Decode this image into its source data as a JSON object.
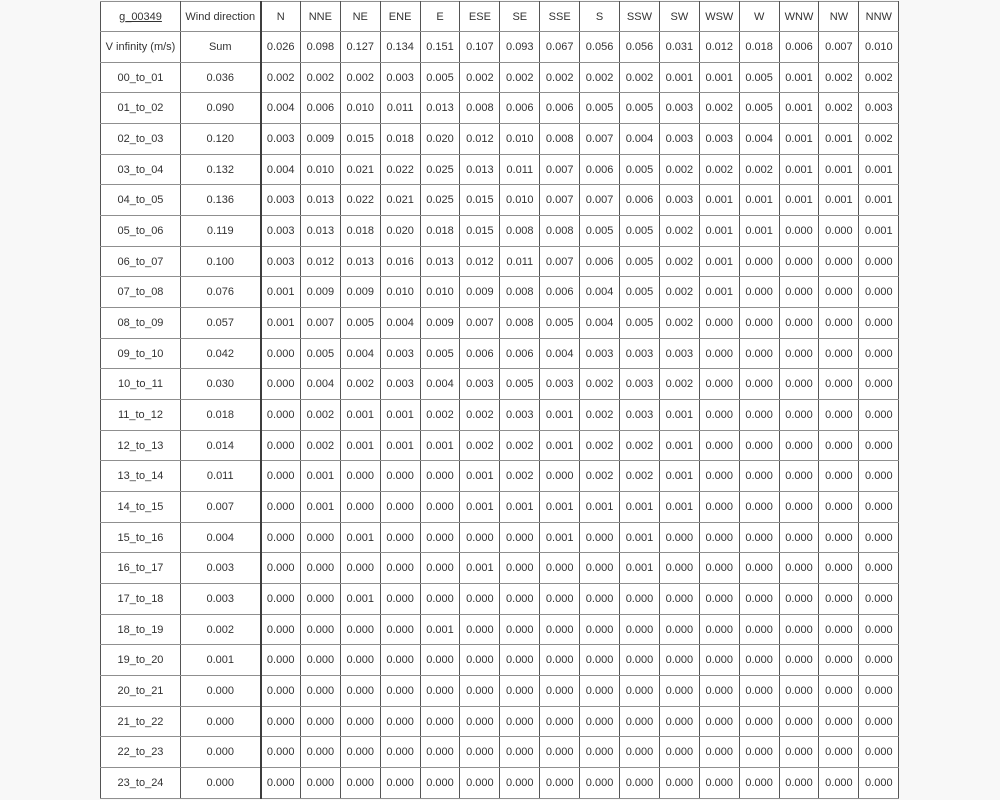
{
  "table": {
    "corner_label": "g_00349",
    "wind_direction_header": "Wind direction",
    "directions": [
      "N",
      "NNE",
      "NE",
      "ENE",
      "E",
      "ESE",
      "SE",
      "SSE",
      "S",
      "SSW",
      "SW",
      "WSW",
      "W",
      "WNW",
      "NW",
      "NNW"
    ],
    "sum_row": {
      "label": "V infinity (m/s)",
      "sublabel": "Sum",
      "values": [
        "0.026",
        "0.098",
        "0.127",
        "0.134",
        "0.151",
        "0.107",
        "0.093",
        "0.067",
        "0.056",
        "0.056",
        "0.031",
        "0.012",
        "0.018",
        "0.006",
        "0.007",
        "0.010"
      ]
    },
    "rows": [
      {
        "label": "00_to_01",
        "total": "0.036",
        "values": [
          "0.002",
          "0.002",
          "0.002",
          "0.003",
          "0.005",
          "0.002",
          "0.002",
          "0.002",
          "0.002",
          "0.002",
          "0.001",
          "0.001",
          "0.005",
          "0.001",
          "0.002",
          "0.002"
        ]
      },
      {
        "label": "01_to_02",
        "total": "0.090",
        "values": [
          "0.004",
          "0.006",
          "0.010",
          "0.011",
          "0.013",
          "0.008",
          "0.006",
          "0.006",
          "0.005",
          "0.005",
          "0.003",
          "0.002",
          "0.005",
          "0.001",
          "0.002",
          "0.003"
        ]
      },
      {
        "label": "02_to_03",
        "total": "0.120",
        "values": [
          "0.003",
          "0.009",
          "0.015",
          "0.018",
          "0.020",
          "0.012",
          "0.010",
          "0.008",
          "0.007",
          "0.004",
          "0.003",
          "0.003",
          "0.004",
          "0.001",
          "0.001",
          "0.002"
        ]
      },
      {
        "label": "03_to_04",
        "total": "0.132",
        "values": [
          "0.004",
          "0.010",
          "0.021",
          "0.022",
          "0.025",
          "0.013",
          "0.011",
          "0.007",
          "0.006",
          "0.005",
          "0.002",
          "0.002",
          "0.002",
          "0.001",
          "0.001",
          "0.001"
        ]
      },
      {
        "label": "04_to_05",
        "total": "0.136",
        "values": [
          "0.003",
          "0.013",
          "0.022",
          "0.021",
          "0.025",
          "0.015",
          "0.010",
          "0.007",
          "0.007",
          "0.006",
          "0.003",
          "0.001",
          "0.001",
          "0.001",
          "0.001",
          "0.001"
        ]
      },
      {
        "label": "05_to_06",
        "total": "0.119",
        "values": [
          "0.003",
          "0.013",
          "0.018",
          "0.020",
          "0.018",
          "0.015",
          "0.008",
          "0.008",
          "0.005",
          "0.005",
          "0.002",
          "0.001",
          "0.001",
          "0.000",
          "0.000",
          "0.001"
        ]
      },
      {
        "label": "06_to_07",
        "total": "0.100",
        "values": [
          "0.003",
          "0.012",
          "0.013",
          "0.016",
          "0.013",
          "0.012",
          "0.011",
          "0.007",
          "0.006",
          "0.005",
          "0.002",
          "0.001",
          "0.000",
          "0.000",
          "0.000",
          "0.000"
        ]
      },
      {
        "label": "07_to_08",
        "total": "0.076",
        "values": [
          "0.001",
          "0.009",
          "0.009",
          "0.010",
          "0.010",
          "0.009",
          "0.008",
          "0.006",
          "0.004",
          "0.005",
          "0.002",
          "0.001",
          "0.000",
          "0.000",
          "0.000",
          "0.000"
        ]
      },
      {
        "label": "08_to_09",
        "total": "0.057",
        "values": [
          "0.001",
          "0.007",
          "0.005",
          "0.004",
          "0.009",
          "0.007",
          "0.008",
          "0.005",
          "0.004",
          "0.005",
          "0.002",
          "0.000",
          "0.000",
          "0.000",
          "0.000",
          "0.000"
        ]
      },
      {
        "label": "09_to_10",
        "total": "0.042",
        "values": [
          "0.000",
          "0.005",
          "0.004",
          "0.003",
          "0.005",
          "0.006",
          "0.006",
          "0.004",
          "0.003",
          "0.003",
          "0.003",
          "0.000",
          "0.000",
          "0.000",
          "0.000",
          "0.000"
        ]
      },
      {
        "label": "10_to_11",
        "total": "0.030",
        "values": [
          "0.000",
          "0.004",
          "0.002",
          "0.003",
          "0.004",
          "0.003",
          "0.005",
          "0.003",
          "0.002",
          "0.003",
          "0.002",
          "0.000",
          "0.000",
          "0.000",
          "0.000",
          "0.000"
        ]
      },
      {
        "label": "11_to_12",
        "total": "0.018",
        "values": [
          "0.000",
          "0.002",
          "0.001",
          "0.001",
          "0.002",
          "0.002",
          "0.003",
          "0.001",
          "0.002",
          "0.003",
          "0.001",
          "0.000",
          "0.000",
          "0.000",
          "0.000",
          "0.000"
        ]
      },
      {
        "label": "12_to_13",
        "total": "0.014",
        "values": [
          "0.000",
          "0.002",
          "0.001",
          "0.001",
          "0.001",
          "0.002",
          "0.002",
          "0.001",
          "0.002",
          "0.002",
          "0.001",
          "0.000",
          "0.000",
          "0.000",
          "0.000",
          "0.000"
        ]
      },
      {
        "label": "13_to_14",
        "total": "0.011",
        "values": [
          "0.000",
          "0.001",
          "0.000",
          "0.000",
          "0.000",
          "0.001",
          "0.002",
          "0.000",
          "0.002",
          "0.002",
          "0.001",
          "0.000",
          "0.000",
          "0.000",
          "0.000",
          "0.000"
        ]
      },
      {
        "label": "14_to_15",
        "total": "0.007",
        "values": [
          "0.000",
          "0.001",
          "0.000",
          "0.000",
          "0.000",
          "0.001",
          "0.001",
          "0.001",
          "0.001",
          "0.001",
          "0.001",
          "0.000",
          "0.000",
          "0.000",
          "0.000",
          "0.000"
        ]
      },
      {
        "label": "15_to_16",
        "total": "0.004",
        "values": [
          "0.000",
          "0.000",
          "0.001",
          "0.000",
          "0.000",
          "0.000",
          "0.000",
          "0.001",
          "0.000",
          "0.001",
          "0.000",
          "0.000",
          "0.000",
          "0.000",
          "0.000",
          "0.000"
        ]
      },
      {
        "label": "16_to_17",
        "total": "0.003",
        "values": [
          "0.000",
          "0.000",
          "0.000",
          "0.000",
          "0.000",
          "0.001",
          "0.000",
          "0.000",
          "0.000",
          "0.001",
          "0.000",
          "0.000",
          "0.000",
          "0.000",
          "0.000",
          "0.000"
        ]
      },
      {
        "label": "17_to_18",
        "total": "0.003",
        "values": [
          "0.000",
          "0.000",
          "0.001",
          "0.000",
          "0.000",
          "0.000",
          "0.000",
          "0.000",
          "0.000",
          "0.000",
          "0.000",
          "0.000",
          "0.000",
          "0.000",
          "0.000",
          "0.000"
        ]
      },
      {
        "label": "18_to_19",
        "total": "0.002",
        "values": [
          "0.000",
          "0.000",
          "0.000",
          "0.000",
          "0.001",
          "0.000",
          "0.000",
          "0.000",
          "0.000",
          "0.000",
          "0.000",
          "0.000",
          "0.000",
          "0.000",
          "0.000",
          "0.000"
        ]
      },
      {
        "label": "19_to_20",
        "total": "0.001",
        "values": [
          "0.000",
          "0.000",
          "0.000",
          "0.000",
          "0.000",
          "0.000",
          "0.000",
          "0.000",
          "0.000",
          "0.000",
          "0.000",
          "0.000",
          "0.000",
          "0.000",
          "0.000",
          "0.000"
        ]
      },
      {
        "label": "20_to_21",
        "total": "0.000",
        "values": [
          "0.000",
          "0.000",
          "0.000",
          "0.000",
          "0.000",
          "0.000",
          "0.000",
          "0.000",
          "0.000",
          "0.000",
          "0.000",
          "0.000",
          "0.000",
          "0.000",
          "0.000",
          "0.000"
        ]
      },
      {
        "label": "21_to_22",
        "total": "0.000",
        "values": [
          "0.000",
          "0.000",
          "0.000",
          "0.000",
          "0.000",
          "0.000",
          "0.000",
          "0.000",
          "0.000",
          "0.000",
          "0.000",
          "0.000",
          "0.000",
          "0.000",
          "0.000",
          "0.000"
        ]
      },
      {
        "label": "22_to_23",
        "total": "0.000",
        "values": [
          "0.000",
          "0.000",
          "0.000",
          "0.000",
          "0.000",
          "0.000",
          "0.000",
          "0.000",
          "0.000",
          "0.000",
          "0.000",
          "0.000",
          "0.000",
          "0.000",
          "0.000",
          "0.000"
        ]
      },
      {
        "label": "23_to_24",
        "total": "0.000",
        "values": [
          "0.000",
          "0.000",
          "0.000",
          "0.000",
          "0.000",
          "0.000",
          "0.000",
          "0.000",
          "0.000",
          "0.000",
          "0.000",
          "0.000",
          "0.000",
          "0.000",
          "0.000",
          "0.000"
        ]
      }
    ]
  }
}
